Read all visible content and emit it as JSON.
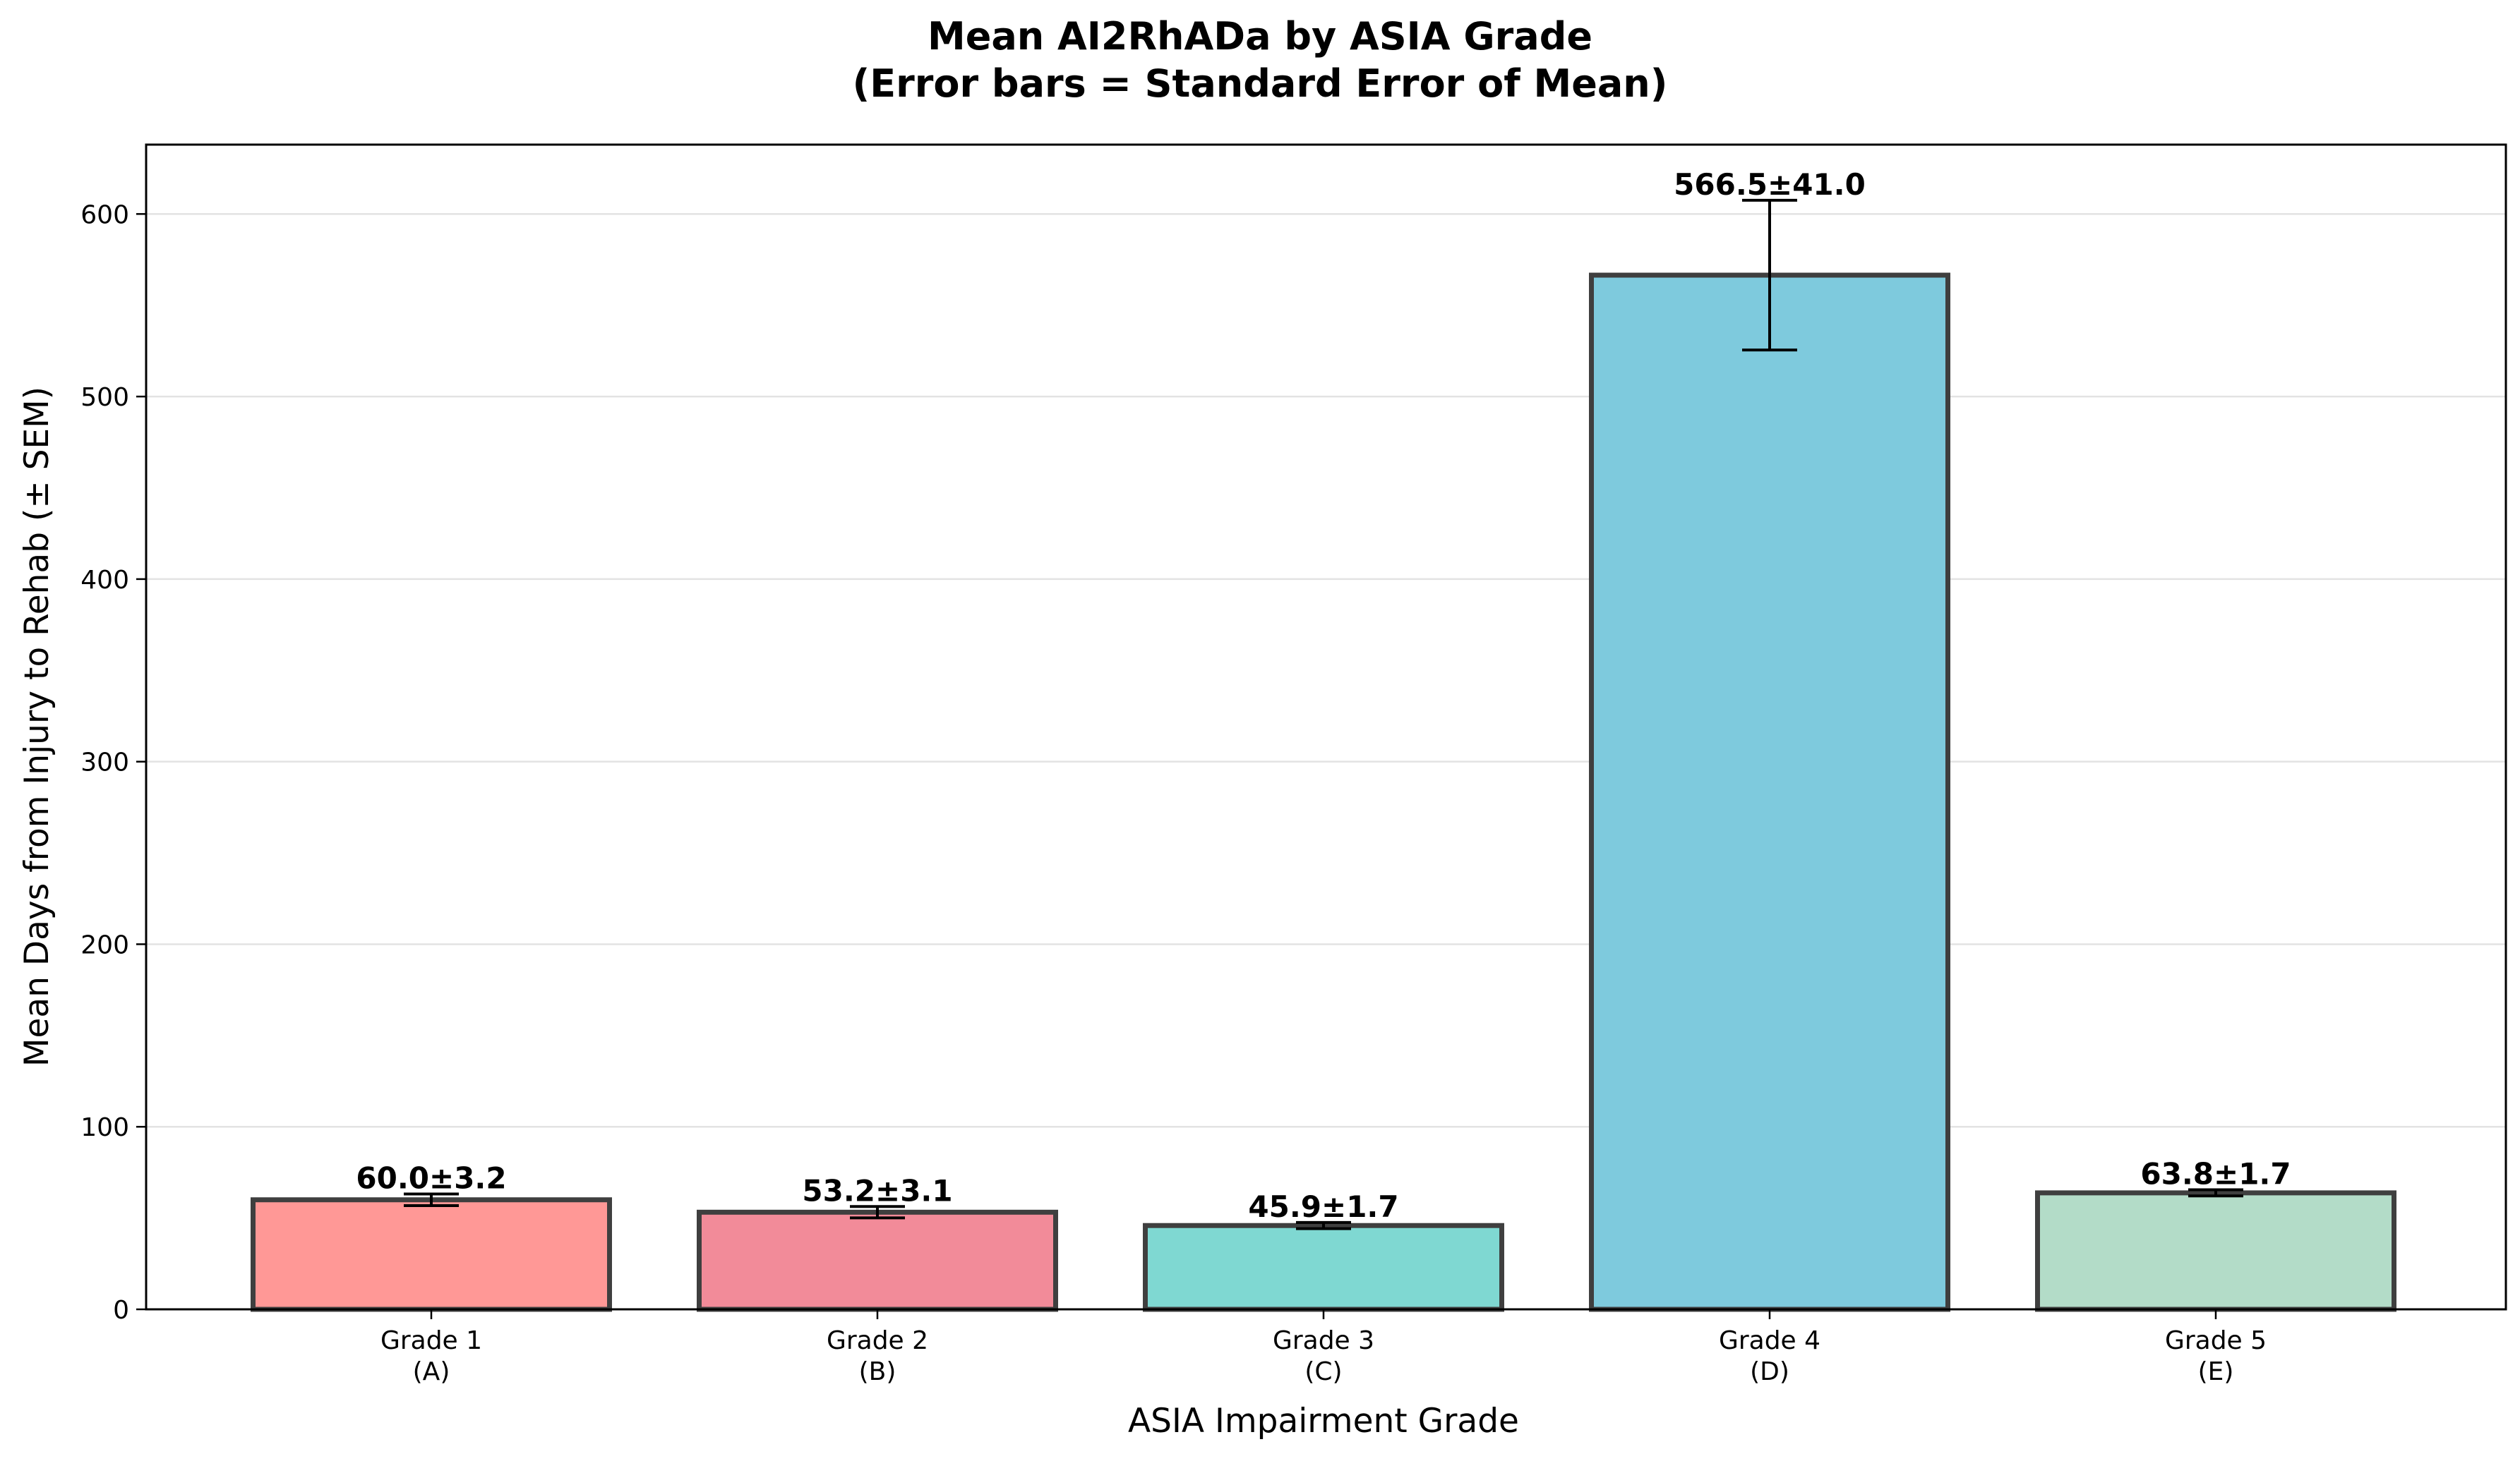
{
  "chart_data": {
    "type": "bar",
    "title_line1": "Mean AI2RhADa by ASIA Grade",
    "title_line2": "(Error bars = Standard Error of Mean)",
    "xlabel": "ASIA Impairment Grade",
    "ylabel": "Mean Days from Injury to Rehab (± SEM)",
    "categories": [
      {
        "line1": "Grade 1",
        "line2": "(A)"
      },
      {
        "line1": "Grade 2",
        "line2": "(B)"
      },
      {
        "line1": "Grade 3",
        "line2": "(C)"
      },
      {
        "line1": "Grade 4",
        "line2": "(D)"
      },
      {
        "line1": "Grade 5",
        "line2": "(E)"
      }
    ],
    "values": [
      60.0,
      53.2,
      45.9,
      566.5,
      63.8
    ],
    "errors": [
      3.2,
      3.1,
      1.7,
      41.0,
      1.7
    ],
    "data_labels": [
      "60.0±3.2",
      "53.2±3.1",
      "45.9±1.7",
      "566.5±41.0",
      "63.8±1.7"
    ],
    "colors": [
      "#ff9896",
      "#f28b99",
      "#7fd8d2",
      "#7ecadd",
      "#b3dcc8"
    ],
    "edge_color": "#3f3f3f",
    "ylim": [
      0,
      638
    ],
    "yticks": [
      0,
      100,
      200,
      300,
      400,
      500,
      600
    ],
    "grid": "horizontal"
  }
}
